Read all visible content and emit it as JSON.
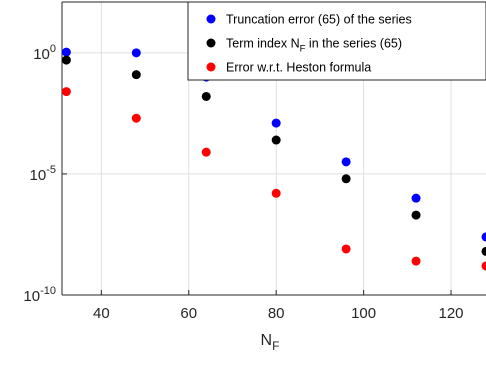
{
  "chart_data": {
    "type": "scatter",
    "title": "",
    "xlabel": {
      "base": "N",
      "sub": "F"
    },
    "ylabel": "",
    "xlim": [
      31,
      128
    ],
    "ylim_log10": [
      -10,
      2.1
    ],
    "y_scale": "log",
    "grid": true,
    "legend_position": "top-right",
    "x_ticks": [
      {
        "value": 40,
        "label": "40"
      },
      {
        "value": 60,
        "label": "60"
      },
      {
        "value": 80,
        "label": "80"
      },
      {
        "value": 100,
        "label": "100"
      },
      {
        "value": 120,
        "label": "120"
      }
    ],
    "y_ticks": [
      {
        "exp": 0,
        "base": "10",
        "sup": "0"
      },
      {
        "exp": -5,
        "base": "10",
        "sup": "-5"
      },
      {
        "exp": -10,
        "base": "10",
        "sup": "-10"
      }
    ],
    "x": [
      32,
      48,
      64,
      80,
      96,
      112,
      128
    ],
    "series": [
      {
        "legend": {
          "text": "Truncation error (65) of the series"
        },
        "color": "#0000ff",
        "y": [
          0.03,
          0.0,
          -1.0,
          -2.9,
          -4.5,
          -6.0,
          -7.6
        ]
      },
      {
        "legend": {
          "text_pre": "Term index N",
          "text_sub": "F",
          "text_post": " in the series (65)"
        },
        "color": "#000000",
        "y": [
          -0.3,
          -0.9,
          -1.8,
          -3.6,
          -5.2,
          -6.7,
          -8.2
        ]
      },
      {
        "legend": {
          "text": "Error w.r.t. Heston formula"
        },
        "color": "#ff0000",
        "y": [
          -1.6,
          -2.7,
          -4.1,
          -5.8,
          -8.1,
          -8.6,
          -8.8
        ]
      }
    ]
  }
}
